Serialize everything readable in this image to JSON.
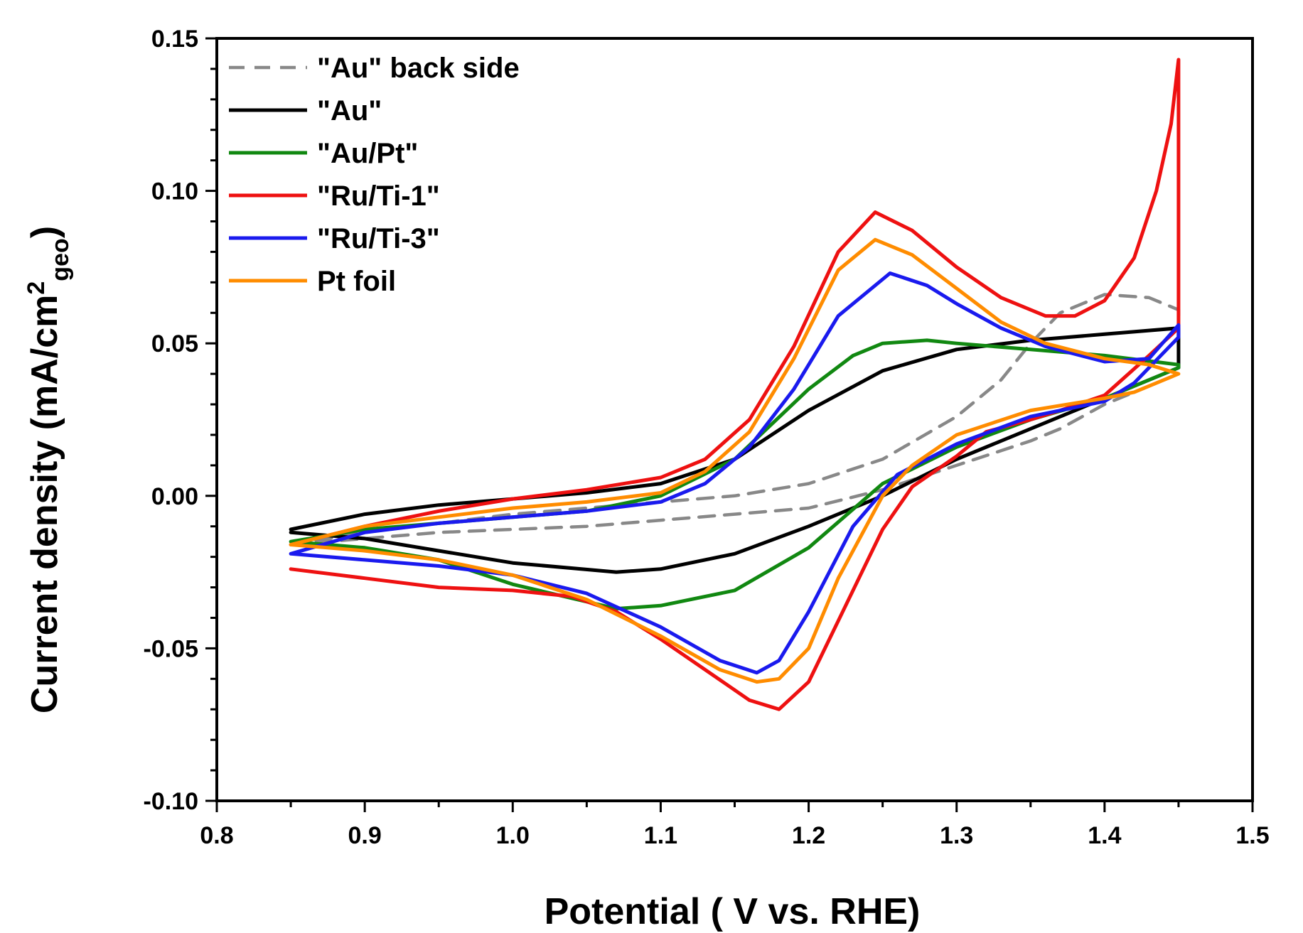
{
  "chart_data": {
    "type": "line",
    "title": "",
    "xlabel": "Potential ( V vs. RHE)",
    "ylabel": {
      "main": "Current density (mA/cm",
      "sup": "2",
      "sub": "geo",
      "close": ")"
    },
    "xlim": [
      0.8,
      1.5
    ],
    "ylim": [
      -0.1,
      0.15
    ],
    "xticks": [
      0.8,
      0.9,
      1.0,
      1.1,
      1.2,
      1.3,
      1.4,
      1.5
    ],
    "yticks": [
      -0.1,
      -0.05,
      0.0,
      0.05,
      0.1,
      0.15
    ],
    "xtick_labels": [
      "0.8",
      "0.9",
      "1.0",
      "1.1",
      "1.2",
      "1.3",
      "1.4",
      "1.5"
    ],
    "ytick_labels": [
      "-0.10",
      "-0.05",
      "0.00",
      "0.05",
      "0.10",
      "0.15"
    ],
    "grid": false,
    "legend_position": "top-left",
    "series": [
      {
        "name": "\"Au\" back side",
        "color": "#888888",
        "dashed": true,
        "forward": [
          [
            0.85,
            -0.016
          ],
          [
            0.9,
            -0.012
          ],
          [
            0.95,
            -0.009
          ],
          [
            1.0,
            -0.006
          ],
          [
            1.05,
            -0.004
          ],
          [
            1.1,
            -0.002
          ],
          [
            1.15,
            0.0
          ],
          [
            1.2,
            0.004
          ],
          [
            1.25,
            0.012
          ],
          [
            1.3,
            0.026
          ],
          [
            1.33,
            0.038
          ],
          [
            1.35,
            0.05
          ],
          [
            1.37,
            0.06
          ],
          [
            1.4,
            0.066
          ],
          [
            1.43,
            0.065
          ],
          [
            1.45,
            0.061
          ]
        ],
        "backward": [
          [
            1.45,
            0.04
          ],
          [
            1.42,
            0.034
          ],
          [
            1.4,
            0.03
          ],
          [
            1.37,
            0.022
          ],
          [
            1.35,
            0.018
          ],
          [
            1.3,
            0.01
          ],
          [
            1.25,
            0.002
          ],
          [
            1.2,
            -0.004
          ],
          [
            1.15,
            -0.006
          ],
          [
            1.1,
            -0.008
          ],
          [
            1.05,
            -0.01
          ],
          [
            1.0,
            -0.011
          ],
          [
            0.95,
            -0.012
          ],
          [
            0.9,
            -0.014
          ],
          [
            0.85,
            -0.016
          ]
        ]
      },
      {
        "name": "\"Au\"",
        "color": "#000000",
        "dashed": false,
        "forward": [
          [
            0.85,
            -0.011
          ],
          [
            0.9,
            -0.006
          ],
          [
            0.95,
            -0.003
          ],
          [
            1.0,
            -0.001
          ],
          [
            1.05,
            0.001
          ],
          [
            1.1,
            0.004
          ],
          [
            1.15,
            0.012
          ],
          [
            1.2,
            0.028
          ],
          [
            1.25,
            0.041
          ],
          [
            1.3,
            0.048
          ],
          [
            1.35,
            0.051
          ],
          [
            1.4,
            0.053
          ],
          [
            1.45,
            0.055
          ]
        ],
        "backward": [
          [
            1.45,
            0.042
          ],
          [
            1.4,
            0.032
          ],
          [
            1.35,
            0.022
          ],
          [
            1.3,
            0.012
          ],
          [
            1.25,
            0.0
          ],
          [
            1.2,
            -0.01
          ],
          [
            1.15,
            -0.019
          ],
          [
            1.1,
            -0.024
          ],
          [
            1.07,
            -0.025
          ],
          [
            1.0,
            -0.022
          ],
          [
            0.95,
            -0.018
          ],
          [
            0.9,
            -0.014
          ],
          [
            0.85,
            -0.012
          ]
        ]
      },
      {
        "name": "\"Au/Pt\"",
        "color": "#118811",
        "dashed": false,
        "forward": [
          [
            0.85,
            -0.015
          ],
          [
            0.9,
            -0.011
          ],
          [
            0.95,
            -0.009
          ],
          [
            1.0,
            -0.007
          ],
          [
            1.05,
            -0.005
          ],
          [
            1.1,
            0.0
          ],
          [
            1.15,
            0.012
          ],
          [
            1.2,
            0.035
          ],
          [
            1.23,
            0.046
          ],
          [
            1.25,
            0.05
          ],
          [
            1.28,
            0.051
          ],
          [
            1.3,
            0.05
          ],
          [
            1.35,
            0.048
          ],
          [
            1.4,
            0.046
          ],
          [
            1.45,
            0.043
          ]
        ],
        "backward": [
          [
            1.45,
            0.042
          ],
          [
            1.4,
            0.032
          ],
          [
            1.35,
            0.025
          ],
          [
            1.3,
            0.016
          ],
          [
            1.25,
            0.004
          ],
          [
            1.2,
            -0.017
          ],
          [
            1.15,
            -0.031
          ],
          [
            1.1,
            -0.036
          ],
          [
            1.07,
            -0.037
          ],
          [
            1.0,
            -0.029
          ],
          [
            0.95,
            -0.021
          ],
          [
            0.9,
            -0.017
          ],
          [
            0.85,
            -0.015
          ]
        ]
      },
      {
        "name": "\"Ru/Ti-1\"",
        "color": "#ee1111",
        "dashed": false,
        "forward": [
          [
            0.85,
            -0.016
          ],
          [
            0.9,
            -0.01
          ],
          [
            0.95,
            -0.005
          ],
          [
            1.0,
            -0.001
          ],
          [
            1.05,
            0.002
          ],
          [
            1.1,
            0.006
          ],
          [
            1.13,
            0.012
          ],
          [
            1.16,
            0.025
          ],
          [
            1.19,
            0.049
          ],
          [
            1.22,
            0.08
          ],
          [
            1.245,
            0.093
          ],
          [
            1.27,
            0.087
          ],
          [
            1.3,
            0.075
          ],
          [
            1.33,
            0.065
          ],
          [
            1.36,
            0.059
          ],
          [
            1.38,
            0.059
          ],
          [
            1.4,
            0.064
          ],
          [
            1.42,
            0.078
          ],
          [
            1.435,
            0.1
          ],
          [
            1.445,
            0.122
          ],
          [
            1.45,
            0.143
          ]
        ],
        "backward": [
          [
            1.45,
            0.055
          ],
          [
            1.43,
            0.046
          ],
          [
            1.4,
            0.033
          ],
          [
            1.37,
            0.028
          ],
          [
            1.35,
            0.025
          ],
          [
            1.32,
            0.021
          ],
          [
            1.3,
            0.013
          ],
          [
            1.27,
            0.003
          ],
          [
            1.25,
            -0.011
          ],
          [
            1.22,
            -0.041
          ],
          [
            1.2,
            -0.061
          ],
          [
            1.18,
            -0.07
          ],
          [
            1.16,
            -0.067
          ],
          [
            1.13,
            -0.057
          ],
          [
            1.1,
            -0.047
          ],
          [
            1.07,
            -0.038
          ],
          [
            1.04,
            -0.033
          ],
          [
            1.0,
            -0.031
          ],
          [
            0.95,
            -0.03
          ],
          [
            0.9,
            -0.027
          ],
          [
            0.85,
            -0.024
          ]
        ]
      },
      {
        "name": "\"Ru/Ti-3\"",
        "color": "#1a1aee",
        "dashed": false,
        "forward": [
          [
            0.85,
            -0.019
          ],
          [
            0.9,
            -0.012
          ],
          [
            0.95,
            -0.009
          ],
          [
            1.0,
            -0.007
          ],
          [
            1.05,
            -0.005
          ],
          [
            1.1,
            -0.002
          ],
          [
            1.13,
            0.004
          ],
          [
            1.16,
            0.016
          ],
          [
            1.19,
            0.035
          ],
          [
            1.22,
            0.059
          ],
          [
            1.255,
            0.073
          ],
          [
            1.28,
            0.069
          ],
          [
            1.3,
            0.063
          ],
          [
            1.33,
            0.055
          ],
          [
            1.36,
            0.049
          ],
          [
            1.4,
            0.044
          ],
          [
            1.43,
            0.045
          ],
          [
            1.45,
            0.056
          ]
        ],
        "backward": [
          [
            1.45,
            0.052
          ],
          [
            1.42,
            0.037
          ],
          [
            1.4,
            0.031
          ],
          [
            1.35,
            0.026
          ],
          [
            1.3,
            0.017
          ],
          [
            1.26,
            0.007
          ],
          [
            1.23,
            -0.01
          ],
          [
            1.2,
            -0.038
          ],
          [
            1.18,
            -0.054
          ],
          [
            1.165,
            -0.058
          ],
          [
            1.14,
            -0.054
          ],
          [
            1.1,
            -0.043
          ],
          [
            1.05,
            -0.032
          ],
          [
            1.0,
            -0.026
          ],
          [
            0.95,
            -0.023
          ],
          [
            0.9,
            -0.021
          ],
          [
            0.85,
            -0.019
          ]
        ]
      },
      {
        "name": "Pt foil",
        "color": "#ff8c00",
        "dashed": false,
        "forward": [
          [
            0.85,
            -0.016
          ],
          [
            0.9,
            -0.01
          ],
          [
            0.95,
            -0.007
          ],
          [
            1.0,
            -0.004
          ],
          [
            1.05,
            -0.002
          ],
          [
            1.1,
            0.001
          ],
          [
            1.13,
            0.008
          ],
          [
            1.16,
            0.021
          ],
          [
            1.19,
            0.045
          ],
          [
            1.22,
            0.074
          ],
          [
            1.245,
            0.084
          ],
          [
            1.27,
            0.079
          ],
          [
            1.3,
            0.068
          ],
          [
            1.33,
            0.057
          ],
          [
            1.36,
            0.05
          ],
          [
            1.4,
            0.045
          ],
          [
            1.43,
            0.043
          ],
          [
            1.45,
            0.04
          ]
        ],
        "backward": [
          [
            1.45,
            0.04
          ],
          [
            1.42,
            0.034
          ],
          [
            1.4,
            0.032
          ],
          [
            1.35,
            0.028
          ],
          [
            1.3,
            0.02
          ],
          [
            1.27,
            0.01
          ],
          [
            1.25,
            0.0
          ],
          [
            1.22,
            -0.027
          ],
          [
            1.2,
            -0.05
          ],
          [
            1.18,
            -0.06
          ],
          [
            1.165,
            -0.061
          ],
          [
            1.14,
            -0.057
          ],
          [
            1.1,
            -0.046
          ],
          [
            1.05,
            -0.034
          ],
          [
            1.0,
            -0.026
          ],
          [
            0.95,
            -0.021
          ],
          [
            0.9,
            -0.018
          ],
          [
            0.85,
            -0.016
          ]
        ]
      }
    ]
  }
}
